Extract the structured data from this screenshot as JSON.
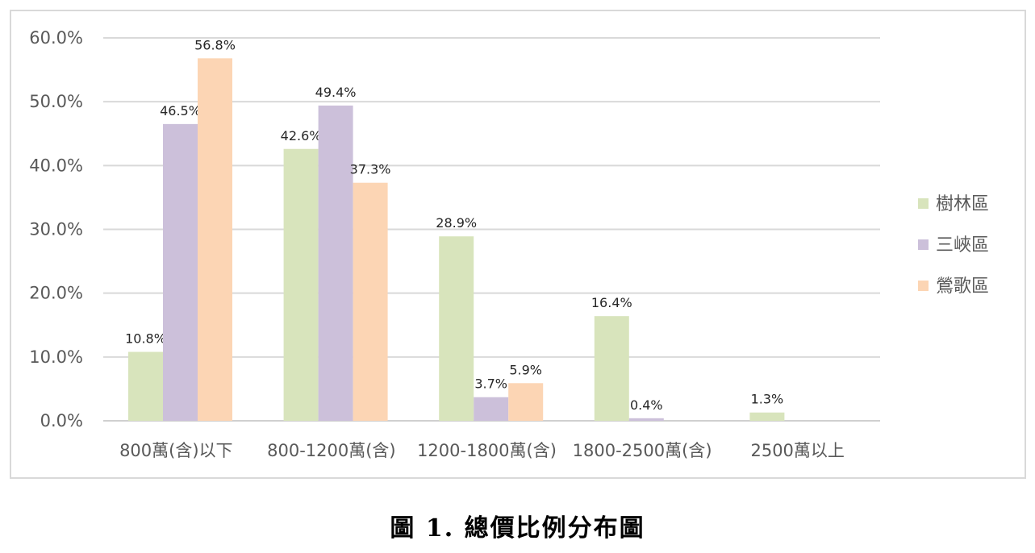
{
  "caption": "圖 1. 總價比例分布圖",
  "chart_data": {
    "type": "bar",
    "title": "",
    "xlabel": "",
    "ylabel": "",
    "categories": [
      "800萬(含)以下",
      "800-1200萬(含)",
      "1200-1800萬(含)",
      "1800-2500萬(含)",
      "2500萬以上"
    ],
    "series": [
      {
        "name": "樹林區",
        "color": "#d8e4bc",
        "values": [
          10.8,
          42.6,
          28.9,
          16.4,
          1.3
        ],
        "labels": [
          "10.8%",
          "42.6%",
          "28.9%",
          "16.4%",
          "1.3%"
        ]
      },
      {
        "name": "三峽區",
        "color": "#ccc0da",
        "values": [
          46.5,
          49.4,
          3.7,
          0.4,
          null
        ],
        "labels": [
          "46.5%",
          "49.4%",
          "3.7%",
          "0.4%",
          ""
        ]
      },
      {
        "name": "鶯歌區",
        "color": "#fcd5b4",
        "values": [
          56.8,
          37.3,
          5.9,
          null,
          null
        ],
        "labels": [
          "56.8%",
          "37.3%",
          "5.9%",
          "",
          ""
        ]
      }
    ],
    "y_ticks": [
      "0.0%",
      "10.0%",
      "20.0%",
      "30.0%",
      "40.0%",
      "50.0%",
      "60.0%"
    ],
    "ylim": [
      0,
      60
    ],
    "grid": true,
    "legend_position": "right"
  }
}
